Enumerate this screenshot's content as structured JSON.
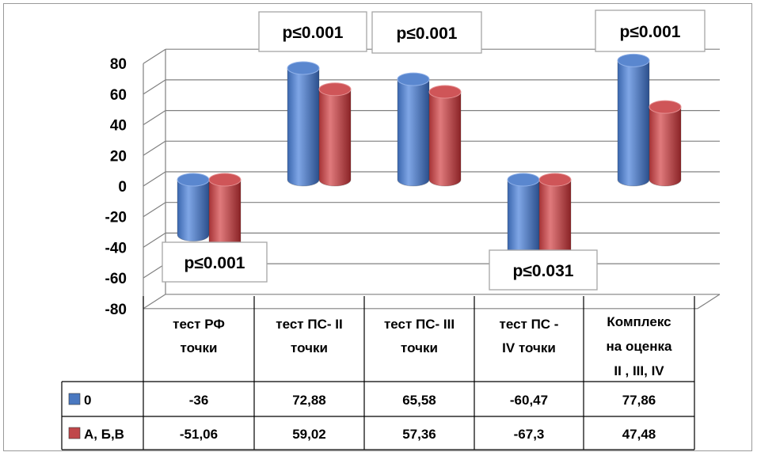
{
  "chart_data": {
    "type": "bar",
    "categories": [
      [
        "тест РФ",
        "точки"
      ],
      [
        "тест ПС-  II",
        "точки"
      ],
      [
        "тест ПС- III",
        "точки"
      ],
      [
        "тест ПС -",
        "IV точки"
      ],
      [
        "Комплекс",
        "на оценка",
        "II , III, IV"
      ]
    ],
    "series": [
      {
        "name": "0",
        "values": [
          -36,
          72.88,
          65.58,
          -60.47,
          77.86
        ],
        "value_labels": [
          "-36",
          "72,88",
          "65,58",
          "-60,47",
          "77,86"
        ],
        "color": "#4a78c0"
      },
      {
        "name": "А, Б,В",
        "values": [
          -51.06,
          59.02,
          57.36,
          -67.3,
          47.48
        ],
        "value_labels": [
          "-51,06",
          "59,02",
          "57,36",
          "-67,3",
          "47,48"
        ],
        "color": "#c0474a"
      }
    ],
    "yticks": [
      "80",
      "60",
      "40",
      "20",
      "0",
      "-20",
      "-40",
      "-60",
      "-80"
    ],
    "ylim": [
      -80,
      80
    ],
    "annotations": [
      {
        "category": 0,
        "text": "p≤0.001"
      },
      {
        "category": 1,
        "text": "p≤0.001"
      },
      {
        "category": 2,
        "text": "p≤0.001"
      },
      {
        "category": 3,
        "text": "p≤0.031"
      },
      {
        "category": 4,
        "text": "p≤0.001"
      }
    ],
    "grid": true,
    "legend": "data-table",
    "three_d": true
  }
}
